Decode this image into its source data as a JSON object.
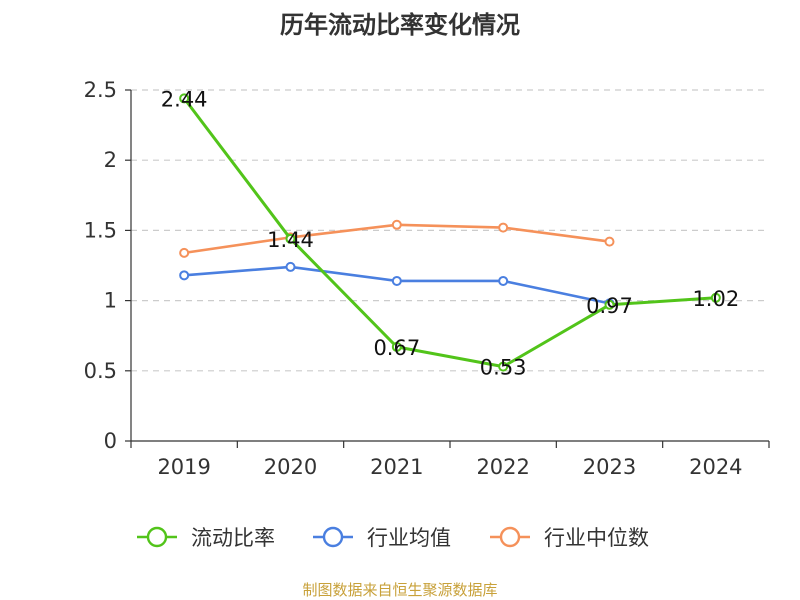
{
  "chart_data": {
    "type": "line",
    "title": "历年流动比率变化情况",
    "categories": [
      "2019",
      "2020",
      "2021",
      "2022",
      "2023",
      "2024"
    ],
    "ylim": [
      0,
      2.5
    ],
    "yticks": [
      "0",
      "0.5",
      "1",
      "1.5",
      "2",
      "2.5"
    ],
    "grid": true,
    "legend_position": "bottom",
    "series": [
      {
        "name": "流动比率",
        "color": "#52c41a",
        "values": [
          2.44,
          1.44,
          0.67,
          0.53,
          0.97,
          1.02
        ],
        "labels": [
          "2.44",
          "1.44",
          "0.67",
          "0.53",
          "0.97",
          "1.02"
        ]
      },
      {
        "name": "行业均值",
        "color": "#4a7fe0",
        "values": [
          1.18,
          1.24,
          1.14,
          1.14,
          0.98,
          null
        ]
      },
      {
        "name": "行业中位数",
        "color": "#f5915a",
        "values": [
          1.34,
          1.45,
          1.54,
          1.52,
          1.42,
          null
        ]
      }
    ]
  },
  "source": "制图数据来自恒生聚源数据库"
}
